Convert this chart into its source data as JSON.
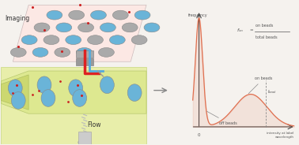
{
  "bg_color": "#f5f2ee",
  "imaging_bg": "#fce8e4",
  "flow_bg": "#e8eeaa",
  "flow_channel_bg": "#dde890",
  "flow_inlet_bg": "#ccd870",
  "bead_blue": "#6ab4d8",
  "bead_grey": "#aaaaaa",
  "bead_edge": "#888888",
  "red_dot": "#cc2222",
  "curve_color": "#e07050",
  "axis_color": "#444444",
  "text_color": "#555555",
  "dashed_color": "#888888",
  "arrow_color": "#888888",
  "imaging_label": "Imaging",
  "flow_label": "Flow",
  "freq_label": "frequency",
  "zero_label": "0",
  "xaxis_label": "intensity at label\nwavelength",
  "ibead_label": "$I_{bead}$",
  "fon_left": "$f_{on}$",
  "fon_eq": "=",
  "fon_num": "on beads",
  "fon_den": "total beads",
  "offbeads_label": "off beads",
  "onbeads_label": "on beads"
}
